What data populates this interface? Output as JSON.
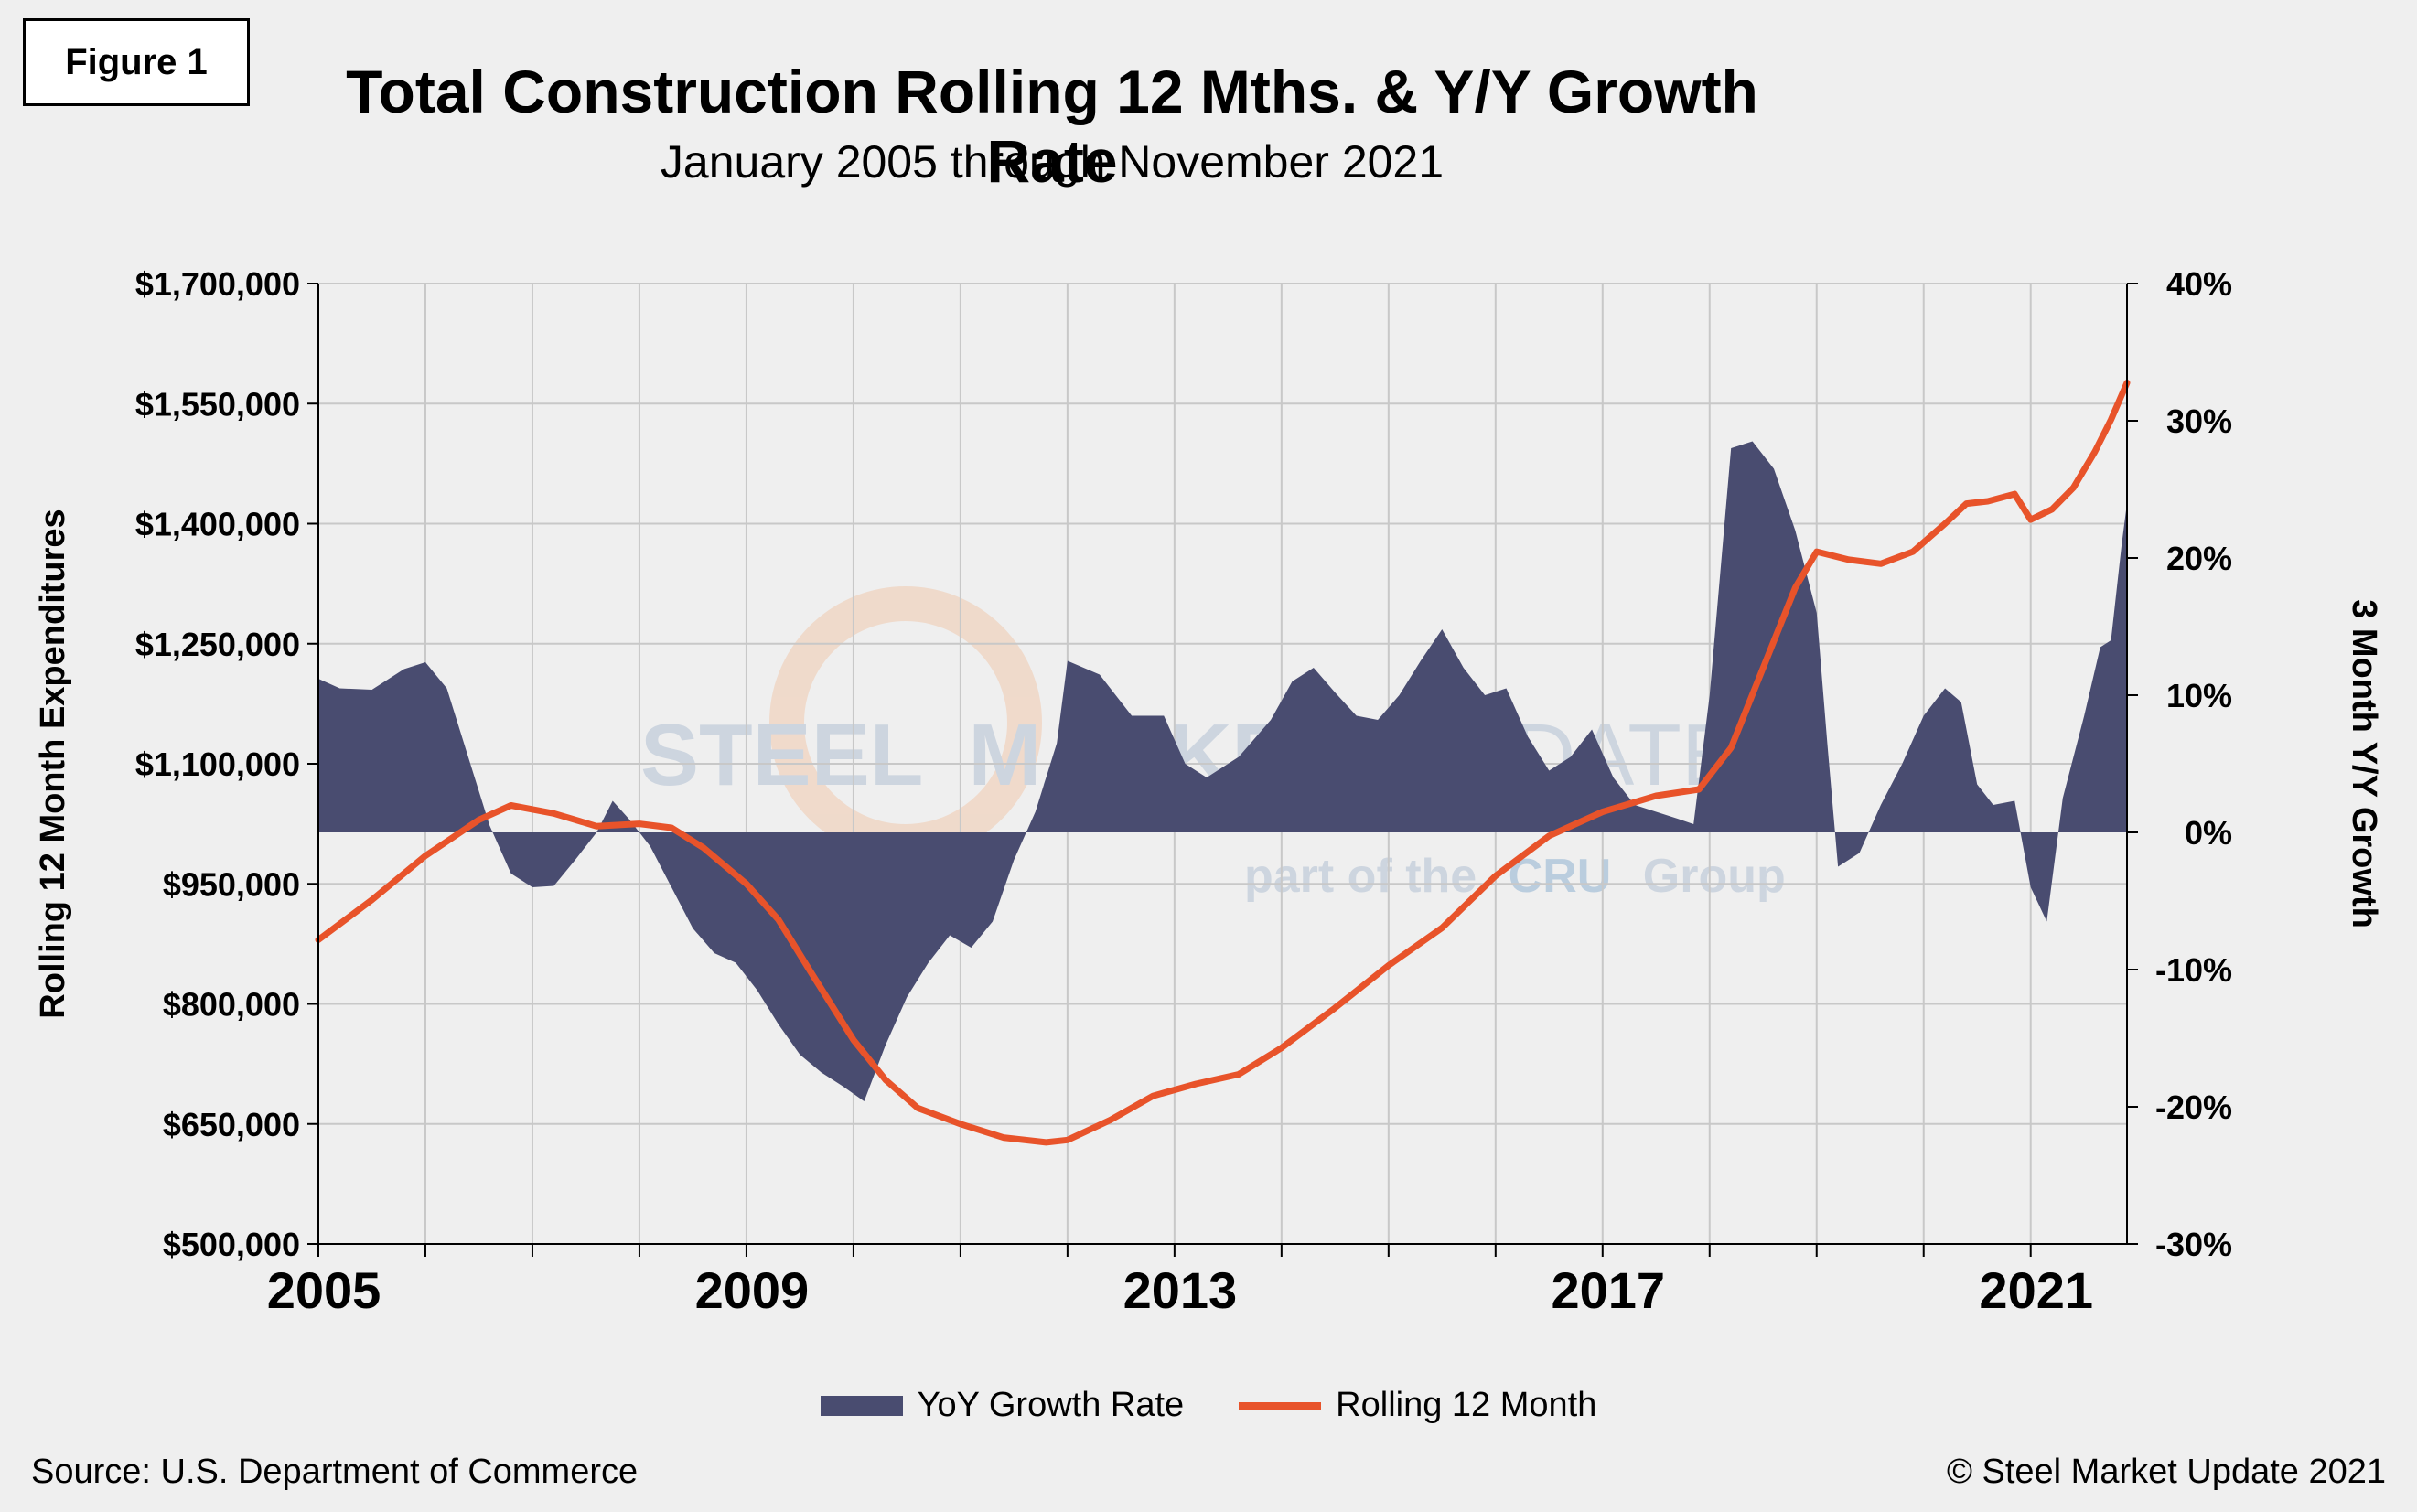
{
  "figure_label": "Figure 1",
  "title": "Total Construction Rolling 12 Mths. & Y/Y Growth Rate",
  "subtitle": "January 2005 through November 2021",
  "source": "Source: U.S. Department of Commerce",
  "copyright": "© Steel Market Update 2021",
  "watermark": {
    "line1a": "STEEL",
    "line1b": "MARKET",
    "line1c": "UPDATE",
    "line2a": "part of the",
    "line2b": "CRU",
    "line2c": "Group"
  },
  "colors": {
    "area": "#494c70",
    "line": "#e8532a",
    "grid": "#c8c8c8",
    "background": "#efefef"
  },
  "chart_data": {
    "type": "area+line",
    "left_axis": {
      "title": "Rolling 12 Month Expenditures",
      "ylim": [
        500000,
        1700000
      ],
      "ticks": [
        "$1,700,000",
        "$1,550,000",
        "$1,400,000",
        "$1,250,000",
        "$1,100,000",
        "$950,000",
        "$800,000",
        "$650,000",
        "$500,000"
      ]
    },
    "right_axis": {
      "title": "3 Month Y/Y Growth",
      "ylim": [
        -30,
        40
      ],
      "ticks": [
        "40%",
        "30%",
        "20%",
        "10%",
        "0%",
        "-10%",
        "-20%",
        "-30%"
      ]
    },
    "x_axis": {
      "xlim": [
        2005.0,
        2021.9
      ],
      "tick_labels": [
        "2005",
        "2009",
        "2013",
        "2017",
        "2021"
      ],
      "tick_values": [
        2005,
        2009,
        2013,
        2017,
        2021
      ]
    },
    "grid": true,
    "legend_position": "bottom",
    "series": [
      {
        "name": "YoY Growth Rate",
        "type": "area",
        "axis": "right",
        "points": [
          [
            2005.0,
            11.2
          ],
          [
            2005.2,
            10.5
          ],
          [
            2005.5,
            10.4
          ],
          [
            2005.8,
            11.9
          ],
          [
            2006.0,
            12.4
          ],
          [
            2006.2,
            10.5
          ],
          [
            2006.4,
            5.5
          ],
          [
            2006.6,
            0.5
          ],
          [
            2006.8,
            -3.0
          ],
          [
            2007.0,
            -4.0
          ],
          [
            2007.2,
            -3.9
          ],
          [
            2007.4,
            -2.0
          ],
          [
            2007.6,
            0.0
          ],
          [
            2007.75,
            2.3
          ],
          [
            2007.9,
            1.0
          ],
          [
            2008.1,
            -1.0
          ],
          [
            2008.3,
            -4.0
          ],
          [
            2008.5,
            -7.0
          ],
          [
            2008.7,
            -8.8
          ],
          [
            2008.9,
            -9.5
          ],
          [
            2009.1,
            -11.5
          ],
          [
            2009.3,
            -14.0
          ],
          [
            2009.5,
            -16.2
          ],
          [
            2009.7,
            -17.5
          ],
          [
            2009.9,
            -18.5
          ],
          [
            2010.1,
            -19.6
          ],
          [
            2010.3,
            -15.5
          ],
          [
            2010.5,
            -12.0
          ],
          [
            2010.7,
            -9.5
          ],
          [
            2010.9,
            -7.5
          ],
          [
            2011.1,
            -8.4
          ],
          [
            2011.3,
            -6.5
          ],
          [
            2011.5,
            -2.0
          ],
          [
            2011.7,
            1.5
          ],
          [
            2011.9,
            6.5
          ],
          [
            2012.0,
            12.5
          ],
          [
            2012.3,
            11.5
          ],
          [
            2012.6,
            8.5
          ],
          [
            2012.9,
            8.5
          ],
          [
            2013.1,
            5.0
          ],
          [
            2013.3,
            4.0
          ],
          [
            2013.6,
            5.5
          ],
          [
            2013.9,
            8.2
          ],
          [
            2014.1,
            11.0
          ],
          [
            2014.3,
            12.0
          ],
          [
            2014.5,
            10.2
          ],
          [
            2014.7,
            8.5
          ],
          [
            2014.9,
            8.2
          ],
          [
            2015.1,
            10.0
          ],
          [
            2015.3,
            12.5
          ],
          [
            2015.5,
            14.8
          ],
          [
            2015.7,
            12.0
          ],
          [
            2015.9,
            10.0
          ],
          [
            2016.1,
            10.5
          ],
          [
            2016.3,
            7.0
          ],
          [
            2016.5,
            4.5
          ],
          [
            2016.7,
            5.5
          ],
          [
            2016.9,
            7.5
          ],
          [
            2017.1,
            4.0
          ],
          [
            2017.3,
            2.0
          ],
          [
            2017.5,
            1.5
          ],
          [
            2017.7,
            1.0
          ],
          [
            2017.85,
            0.6
          ],
          [
            2018.0,
            10.0
          ],
          [
            2018.2,
            28.0
          ],
          [
            2018.4,
            28.5
          ],
          [
            2018.6,
            26.5
          ],
          [
            2018.8,
            22.0
          ],
          [
            2019.0,
            16.0
          ],
          [
            2019.1,
            6.5
          ],
          [
            2019.2,
            -2.5
          ],
          [
            2019.4,
            -1.5
          ],
          [
            2019.6,
            2.0
          ],
          [
            2019.8,
            5.0
          ],
          [
            2020.0,
            8.5
          ],
          [
            2020.2,
            10.5
          ],
          [
            2020.35,
            9.5
          ],
          [
            2020.5,
            3.5
          ],
          [
            2020.65,
            2.0
          ],
          [
            2020.85,
            2.3
          ],
          [
            2021.0,
            -4.0
          ],
          [
            2021.15,
            -6.5
          ],
          [
            2021.3,
            2.5
          ],
          [
            2021.5,
            8.5
          ],
          [
            2021.65,
            13.5
          ],
          [
            2021.75,
            14.0
          ],
          [
            2021.85,
            21.0
          ],
          [
            2021.9,
            24.0
          ]
        ]
      },
      {
        "name": "Rolling 12 Month",
        "type": "line",
        "axis": "left",
        "points": [
          [
            2005.0,
            880000
          ],
          [
            2005.5,
            930000
          ],
          [
            2006.0,
            985000
          ],
          [
            2006.5,
            1030000
          ],
          [
            2006.8,
            1048000
          ],
          [
            2007.2,
            1038000
          ],
          [
            2007.6,
            1022000
          ],
          [
            2008.0,
            1025000
          ],
          [
            2008.3,
            1020000
          ],
          [
            2008.6,
            995000
          ],
          [
            2009.0,
            950000
          ],
          [
            2009.3,
            905000
          ],
          [
            2009.6,
            840000
          ],
          [
            2010.0,
            755000
          ],
          [
            2010.3,
            705000
          ],
          [
            2010.6,
            670000
          ],
          [
            2011.0,
            650000
          ],
          [
            2011.4,
            633000
          ],
          [
            2011.8,
            627000
          ],
          [
            2012.0,
            630000
          ],
          [
            2012.4,
            655000
          ],
          [
            2012.8,
            685000
          ],
          [
            2013.2,
            700000
          ],
          [
            2013.6,
            712000
          ],
          [
            2014.0,
            745000
          ],
          [
            2014.5,
            795000
          ],
          [
            2015.0,
            848000
          ],
          [
            2015.5,
            895000
          ],
          [
            2016.0,
            960000
          ],
          [
            2016.5,
            1010000
          ],
          [
            2017.0,
            1040000
          ],
          [
            2017.5,
            1060000
          ],
          [
            2017.9,
            1068000
          ],
          [
            2018.2,
            1120000
          ],
          [
            2018.5,
            1220000
          ],
          [
            2018.8,
            1320000
          ],
          [
            2019.0,
            1365000
          ],
          [
            2019.3,
            1355000
          ],
          [
            2019.6,
            1350000
          ],
          [
            2019.9,
            1365000
          ],
          [
            2020.2,
            1400000
          ],
          [
            2020.4,
            1425000
          ],
          [
            2020.6,
            1428000
          ],
          [
            2020.85,
            1437000
          ],
          [
            2021.0,
            1405000
          ],
          [
            2021.2,
            1418000
          ],
          [
            2021.4,
            1445000
          ],
          [
            2021.6,
            1490000
          ],
          [
            2021.75,
            1530000
          ],
          [
            2021.9,
            1576000
          ]
        ]
      }
    ]
  }
}
